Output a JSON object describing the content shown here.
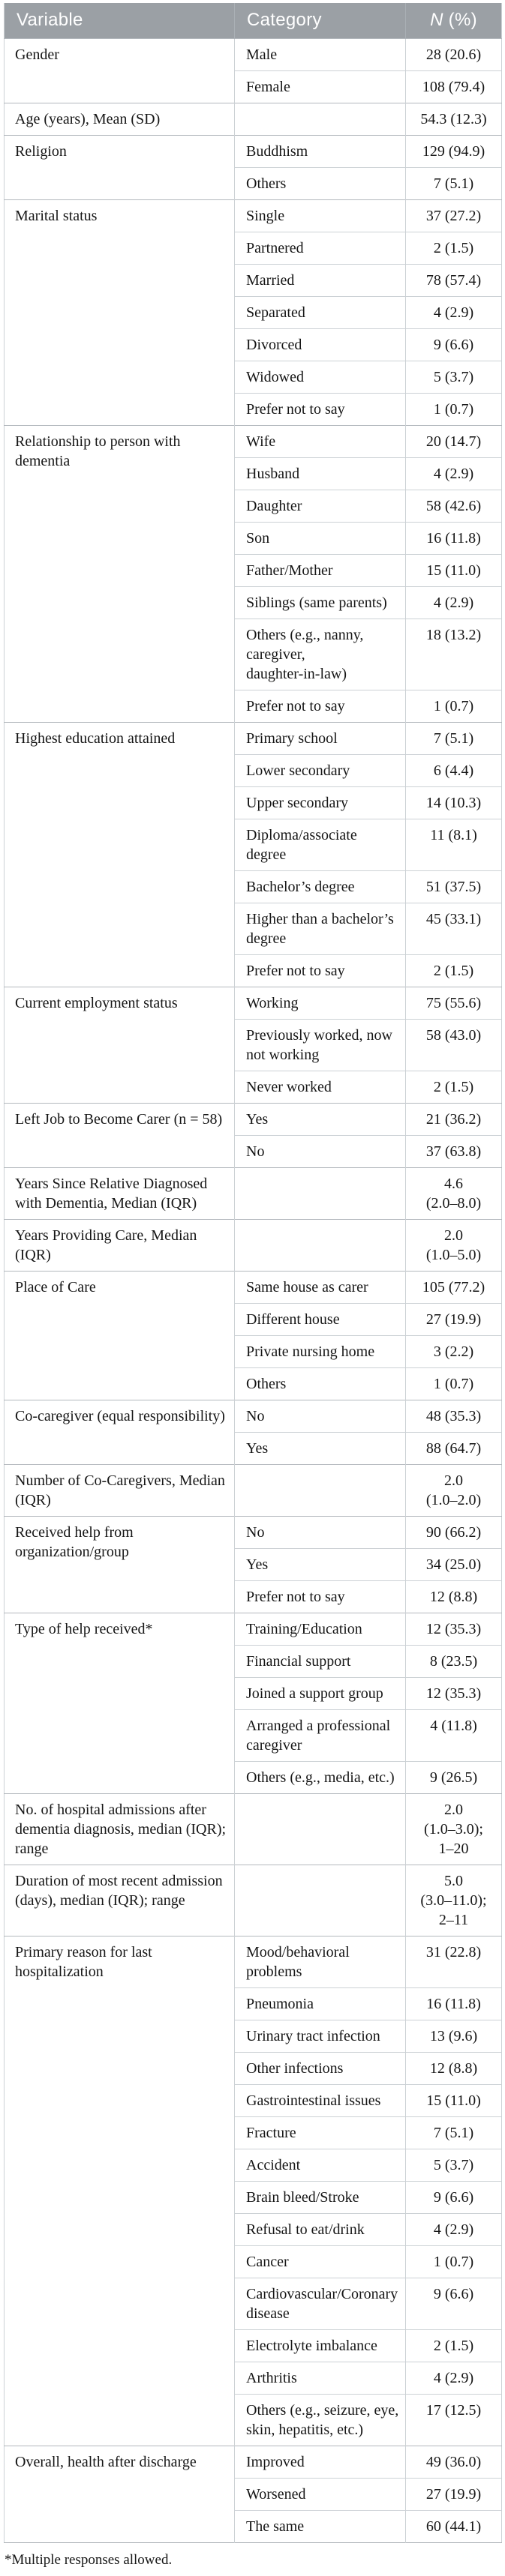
{
  "colors": {
    "header_bg": "#9ba0a5",
    "header_text": "#ffffff",
    "row_line": "#ccd1d5",
    "group_line": "#b3b8bd",
    "text": "#161616"
  },
  "table": {
    "header": {
      "variable": "Variable",
      "category": "Category",
      "n_italic": "N",
      "n_rest": " (%)"
    },
    "groups": [
      {
        "variable": "Gender",
        "rows": [
          {
            "category": "Male",
            "value": "28 (20.6)"
          },
          {
            "category": "Female",
            "value": "108 (79.4)"
          }
        ]
      },
      {
        "variable": "Age (years), Mean (SD)",
        "rows": [
          {
            "category": "",
            "value": "54.3 (12.3)"
          }
        ]
      },
      {
        "variable": "Religion",
        "rows": [
          {
            "category": "Buddhism",
            "value": "129 (94.9)"
          },
          {
            "category": "Others",
            "value": "7 (5.1)"
          }
        ]
      },
      {
        "variable": "Marital status",
        "rows": [
          {
            "category": "Single",
            "value": "37 (27.2)"
          },
          {
            "category": "Partnered",
            "value": "2 (1.5)"
          },
          {
            "category": "Married",
            "value": "78 (57.4)"
          },
          {
            "category": "Separated",
            "value": "4 (2.9)"
          },
          {
            "category": "Divorced",
            "value": "9 (6.6)"
          },
          {
            "category": "Widowed",
            "value": "5 (3.7)"
          },
          {
            "category": "Prefer not to say",
            "value": "1 (0.7)"
          }
        ]
      },
      {
        "variable": "Relationship to person with\ndementia",
        "rows": [
          {
            "category": "Wife",
            "value": "20 (14.7)"
          },
          {
            "category": "Husband",
            "value": "4 (2.9)"
          },
          {
            "category": "Daughter",
            "value": "58 (42.6)"
          },
          {
            "category": "Son",
            "value": "16 (11.8)"
          },
          {
            "category": "Father/Mother",
            "value": "15 (11.0)"
          },
          {
            "category": "Siblings (same parents)",
            "value": "4 (2.9)"
          },
          {
            "category": "Others (e.g., nanny,\ncaregiver,\ndaughter-in-law)",
            "value": "18 (13.2)"
          },
          {
            "category": "Prefer not to say",
            "value": "1 (0.7)"
          }
        ]
      },
      {
        "variable": "Highest education attained",
        "rows": [
          {
            "category": "Primary school",
            "value": "7 (5.1)"
          },
          {
            "category": "Lower secondary",
            "value": "6 (4.4)"
          },
          {
            "category": "Upper secondary",
            "value": "14 (10.3)"
          },
          {
            "category": "Diploma/associate\ndegree",
            "value": "11 (8.1)"
          },
          {
            "category": "Bachelor’s degree",
            "value": "51 (37.5)"
          },
          {
            "category": "Higher than a bachelor’s\ndegree",
            "value": "45 (33.1)"
          },
          {
            "category": "Prefer not to say",
            "value": "2 (1.5)"
          }
        ]
      },
      {
        "variable": "Current employment status",
        "rows": [
          {
            "category": "Working",
            "value": "75 (55.6)"
          },
          {
            "category": "Previously worked, now\nnot working",
            "value": "58 (43.0)"
          },
          {
            "category": "Never worked",
            "value": "2 (1.5)"
          }
        ]
      },
      {
        "variable": "Left Job to Become Carer (n = 58)",
        "rows": [
          {
            "category": "Yes",
            "value": "21 (36.2)"
          },
          {
            "category": "No",
            "value": "37 (63.8)"
          }
        ]
      },
      {
        "variable": "Years Since Relative Diagnosed\nwith Dementia, Median (IQR)",
        "rows": [
          {
            "category": "",
            "value": "4.6\n(2.0–8.0)"
          }
        ]
      },
      {
        "variable": "Years Providing Care, Median\n(IQR)",
        "rows": [
          {
            "category": "",
            "value": "2.0\n(1.0–5.0)"
          }
        ]
      },
      {
        "variable": "Place of Care",
        "rows": [
          {
            "category": "Same house as carer",
            "value": "105 (77.2)"
          },
          {
            "category": "Different house",
            "value": "27 (19.9)"
          },
          {
            "category": "Private nursing home",
            "value": "3 (2.2)"
          },
          {
            "category": "Others",
            "value": "1 (0.7)"
          }
        ]
      },
      {
        "variable": "Co-caregiver (equal responsibility)",
        "rows": [
          {
            "category": "No",
            "value": "48 (35.3)"
          },
          {
            "category": "Yes",
            "value": "88 (64.7)"
          }
        ]
      },
      {
        "variable": "Number of Co-Caregivers, Median\n(IQR)",
        "rows": [
          {
            "category": "",
            "value": "2.0\n(1.0–2.0)"
          }
        ]
      },
      {
        "variable": "Received help from\norganization/group",
        "rows": [
          {
            "category": "No",
            "value": "90 (66.2)"
          },
          {
            "category": "Yes",
            "value": "34 (25.0)"
          },
          {
            "category": "Prefer not to say",
            "value": "12 (8.8)"
          }
        ]
      },
      {
        "variable": "Type of help received*",
        "rows": [
          {
            "category": "Training/Education",
            "value": "12 (35.3)"
          },
          {
            "category": "Financial support",
            "value": "8 (23.5)"
          },
          {
            "category": "Joined a support group",
            "value": "12 (35.3)"
          },
          {
            "category": "Arranged a professional\ncaregiver",
            "value": "4 (11.8)"
          },
          {
            "category": "Others (e.g., media, etc.)",
            "value": "9 (26.5)"
          }
        ]
      },
      {
        "variable": "No. of hospital admissions after\ndementia diagnosis, median (IQR);\nrange",
        "rows": [
          {
            "category": "",
            "value": "2.0\n(1.0–3.0);\n1–20"
          }
        ]
      },
      {
        "variable": "Duration of most recent admission\n(days), median (IQR); range",
        "rows": [
          {
            "category": "",
            "value": "5.0\n(3.0–11.0);\n2–11"
          }
        ]
      },
      {
        "variable": "Primary reason for last\nhospitalization",
        "rows": [
          {
            "category": "Mood/behavioral\nproblems",
            "value": "31 (22.8)"
          },
          {
            "category": "Pneumonia",
            "value": "16 (11.8)"
          },
          {
            "category": "Urinary tract infection",
            "value": "13 (9.6)"
          },
          {
            "category": "Other infections",
            "value": "12 (8.8)"
          },
          {
            "category": "Gastrointestinal issues",
            "value": "15 (11.0)"
          },
          {
            "category": "Fracture",
            "value": "7 (5.1)"
          },
          {
            "category": "Accident",
            "value": "5 (3.7)"
          },
          {
            "category": "Brain bleed/Stroke",
            "value": "9 (6.6)"
          },
          {
            "category": "Refusal to eat/drink",
            "value": "4 (2.9)"
          },
          {
            "category": "Cancer",
            "value": "1 (0.7)"
          },
          {
            "category": "Cardiovascular/Coronary\ndisease",
            "value": "9 (6.6)"
          },
          {
            "category": "Electrolyte imbalance",
            "value": "2 (1.5)"
          },
          {
            "category": "Arthritis",
            "value": "4 (2.9)"
          },
          {
            "category": "Others (e.g., seizure, eye,\nskin, hepatitis, etc.)",
            "value": "17 (12.5)"
          }
        ]
      },
      {
        "variable": "Overall, health after discharge",
        "rows": [
          {
            "category": "Improved",
            "value": "49 (36.0)"
          },
          {
            "category": "Worsened",
            "value": "27 (19.9)"
          },
          {
            "category": "The same",
            "value": "60 (44.1)"
          }
        ]
      }
    ],
    "footnote": "*Multiple responses allowed."
  }
}
